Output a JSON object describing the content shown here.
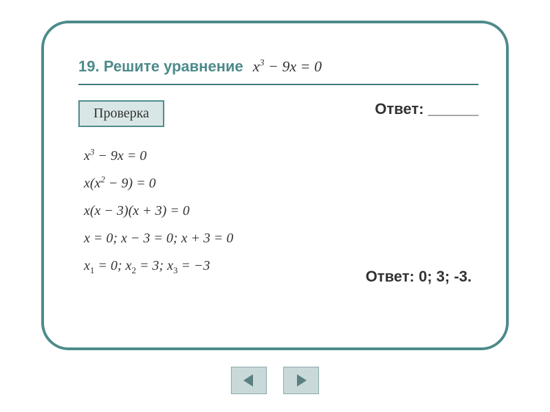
{
  "card": {
    "border_color": "#4d8a8a",
    "border_radius": 40,
    "background": "#ffffff"
  },
  "title": {
    "number_and_text": "19. Решите уравнение",
    "color": "#4d8a8a",
    "fontsize": 22,
    "equation_html": "x<sup>3</sup> − 9x = 0"
  },
  "divider": {
    "color": "#3d7a7a"
  },
  "check_button": {
    "label": "Проверка",
    "background": "#d9e6e6",
    "border_color": "#4d8a8a",
    "fontsize": 20
  },
  "answer_prompt": {
    "label": "Ответ: ______",
    "fontsize": 22
  },
  "solution": {
    "lines_html": [
      "x<sup>3</sup> − 9x = 0",
      "x(x<sup>2</sup> − 9) = 0",
      "x(x − 3)(x + 3) = 0",
      "x = 0; x − 3 = 0; x + 3 = 0",
      "x<sub>1</sub> = 0; x<sub>2</sub> = 3; x<sub>3</sub> = −3"
    ],
    "fontsize": 20,
    "color": "#333333"
  },
  "answer_final": {
    "label": "Ответ: 0; 3; -3.",
    "fontsize": 22
  },
  "nav": {
    "button_bg": "#c9d9d9",
    "button_border": "#8aa8a8",
    "arrow_fill": "#5a8080"
  }
}
